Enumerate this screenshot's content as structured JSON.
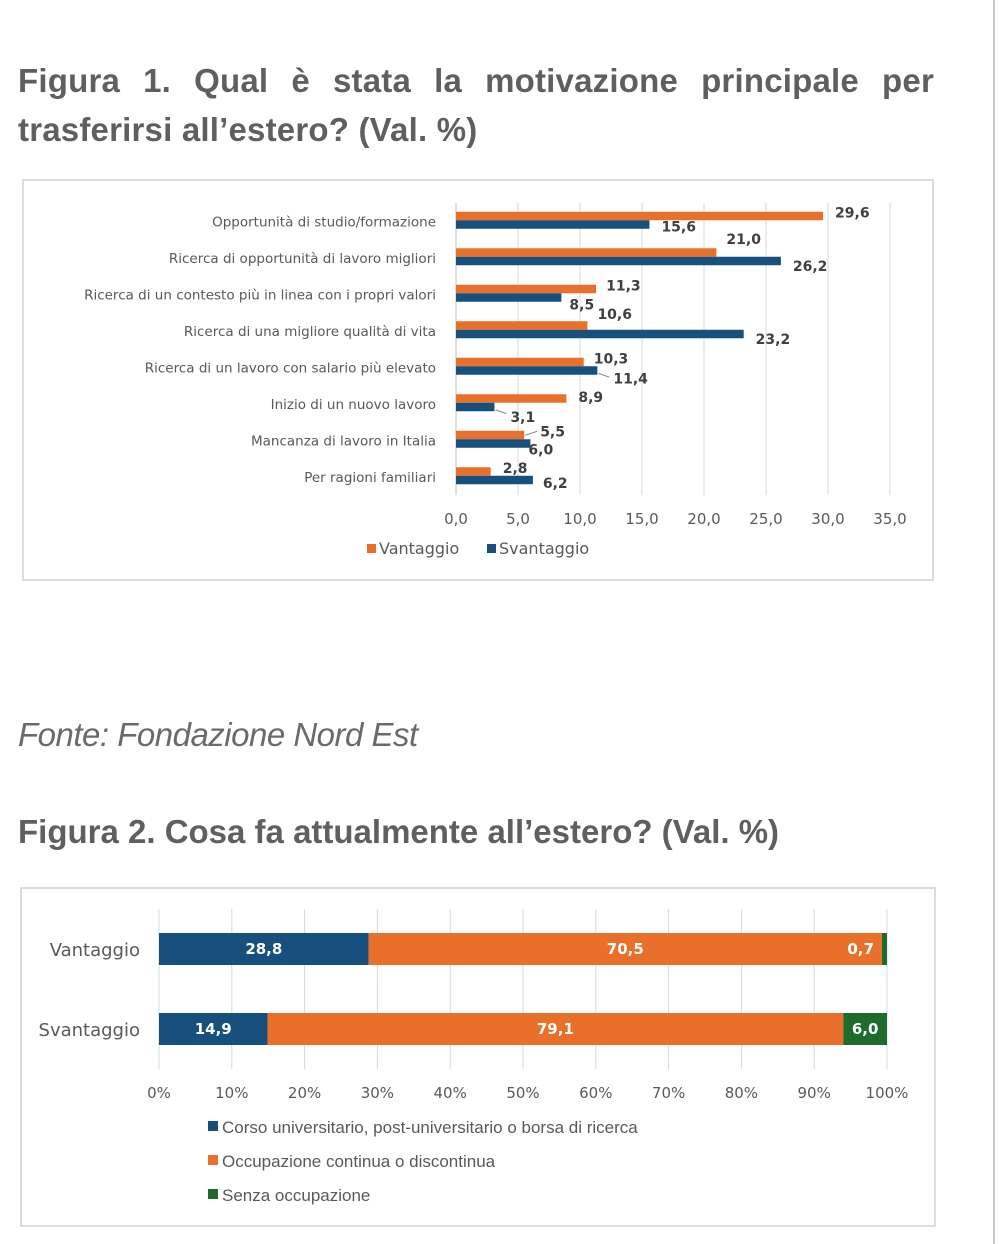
{
  "page": {
    "figure1_title": "Figura 1. Qual è stata la motivazione principale per trasferirsi all’estero? (Val. %)",
    "source": "Fonte: Fondazione Nord Est",
    "figure2_title": "Figura 2. Cosa fa attualmente all’estero? (Val. %)"
  },
  "colors": {
    "vantaggio": "#E8702A",
    "svantaggio": "#17507C",
    "corso": "#17507C",
    "occupazione": "#E8702A",
    "senza": "#1E6B2C",
    "grid": "#d9d9d9",
    "text": "#595959"
  },
  "chart_data": [
    {
      "type": "bar",
      "orientation": "horizontal",
      "title": "Figura 1. Qual è stata la motivazione principale per trasferirsi all’estero? (Val. %)",
      "categories": [
        "Opportunità di studio/formazione",
        "Ricerca di opportunità di lavoro migliori",
        "Ricerca di un contesto più in linea con i propri valori",
        "Ricerca di una migliore qualità di vita",
        "Ricerca di un lavoro con salario più elevato",
        "Inizio di un nuovo lavoro",
        "Mancanza di lavoro in Italia",
        "Per ragioni familiari"
      ],
      "series": [
        {
          "name": "Vantaggio",
          "values": [
            29.6,
            21.0,
            11.3,
            10.6,
            10.3,
            8.9,
            5.5,
            2.8
          ],
          "labels": [
            "29,6",
            "21,0",
            "11,3",
            "10,6",
            "10,3",
            "8,9",
            "5,5",
            "2,8"
          ]
        },
        {
          "name": "Svantaggio",
          "values": [
            15.6,
            26.2,
            8.5,
            23.2,
            11.4,
            3.1,
            6.0,
            6.2
          ],
          "labels": [
            "15,6",
            "26,2",
            "8,5",
            "23,2",
            "11,4",
            "3,1",
            "6,0",
            "6,2"
          ]
        }
      ],
      "xlim": [
        0,
        35
      ],
      "xticks": [
        "0,0",
        "5,0",
        "10,0",
        "15,0",
        "20,0",
        "25,0",
        "30,0",
        "35,0"
      ],
      "xlabel": "",
      "ylabel": "",
      "grid": true,
      "legend": [
        "Vantaggio",
        "Svantaggio"
      ],
      "legend_position": "bottom"
    },
    {
      "type": "bar",
      "orientation": "horizontal",
      "stacked": true,
      "percent": true,
      "title": "Figura 2. Cosa fa attualmente all’estero? (Val. %)",
      "categories": [
        "Vantaggio",
        "Svantaggio"
      ],
      "series": [
        {
          "name": "Corso universitario, post-universitario o borsa di ricerca",
          "values": [
            28.8,
            14.9
          ],
          "labels": [
            "28,8",
            "14,9"
          ]
        },
        {
          "name": "Occupazione continua o discontinua",
          "values": [
            70.5,
            79.1
          ],
          "labels": [
            "70,5",
            "79,1"
          ]
        },
        {
          "name": "Senza occupazione",
          "values": [
            0.7,
            6.0
          ],
          "labels": [
            "0,7",
            "6,0"
          ]
        }
      ],
      "xlim": [
        0,
        100
      ],
      "xticks": [
        "0%",
        "10%",
        "20%",
        "30%",
        "40%",
        "50%",
        "60%",
        "70%",
        "80%",
        "90%",
        "100%"
      ],
      "xlabel": "",
      "ylabel": "",
      "grid": true,
      "legend": [
        "Corso universitario, post-universitario o borsa di ricerca",
        "Occupazione continua o discontinua",
        "Senza occupazione"
      ],
      "legend_position": "bottom"
    }
  ]
}
